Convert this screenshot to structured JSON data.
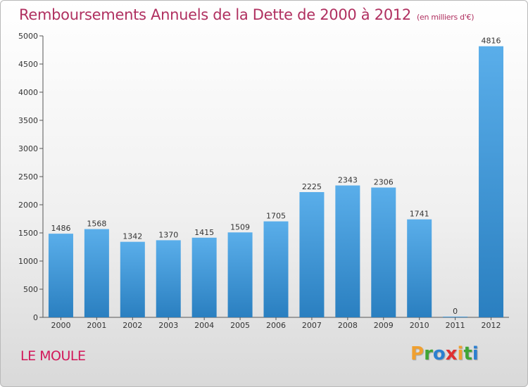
{
  "chart_data": {
    "type": "bar",
    "title": "Remboursements Annuels de la Dette de 2000 à 2012",
    "subtitle": "(en milliers d'€)",
    "categories": [
      "2000",
      "2001",
      "2002",
      "2003",
      "2004",
      "2005",
      "2006",
      "2007",
      "2008",
      "2009",
      "2010",
      "2011",
      "2012"
    ],
    "values": [
      1486,
      1568,
      1342,
      1370,
      1415,
      1509,
      1705,
      2225,
      2343,
      2306,
      1741,
      0,
      4816
    ],
    "ylim": [
      0,
      5000
    ],
    "yticks": [
      0,
      500,
      1000,
      1500,
      2000,
      2500,
      3000,
      3500,
      4000,
      4500,
      5000
    ],
    "grid": false,
    "bar_color_top": "#5aaeea",
    "bar_color_bottom": "#2a7fc0"
  },
  "footer": {
    "commune": "LE MOULE",
    "logo_letters": [
      "P",
      "r",
      "o",
      "x",
      "i",
      "t",
      "i"
    ],
    "logo_colors": [
      "#f0a030",
      "#3fa535",
      "#2b7fd0",
      "#e03030",
      "#f0a030",
      "#3fa535",
      "#2b7fd0"
    ]
  }
}
